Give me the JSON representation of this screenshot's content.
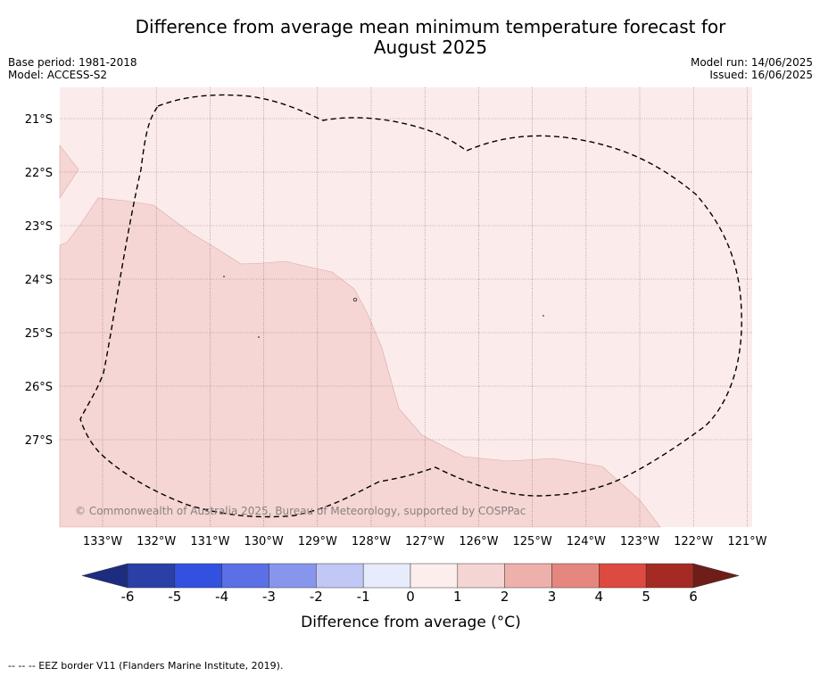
{
  "title": "Difference from average mean minimum temperature forecast for",
  "title_line2": "August 2025",
  "base_period": "Base period: 1981-2018",
  "model": "Model: ACCESS-S2",
  "model_run": "Model run: 14/06/2025",
  "issued": "Issued: 16/06/2025",
  "copyright": "© Commonwealth of Australia 2025, Bureau of Meteorology, supported by COSPPac",
  "lat_labels": [
    "21°S",
    "22°S",
    "23°S",
    "24°S",
    "25°S",
    "26°S",
    "27°S"
  ],
  "lon_labels": [
    "133°W",
    "132°W",
    "131°W",
    "130°W",
    "129°W",
    "128°W",
    "127°W",
    "126°W",
    "125°W",
    "124°W",
    "123°W",
    "122°W",
    "121°W"
  ],
  "colorbar": {
    "ticks": [
      "-6",
      "-5",
      "-4",
      "-3",
      "-2",
      "-1",
      "0",
      "1",
      "2",
      "3",
      "4",
      "5",
      "6"
    ],
    "colors": [
      "#2a3fa8",
      "#3251e0",
      "#5b6fe6",
      "#8796ec",
      "#c2c8f5",
      "#e8ebfb",
      "#fdeeee",
      "#f5d5d3",
      "#eeb0ab",
      "#e6877f",
      "#dc4a40",
      "#a52a24"
    ],
    "under_color": "#1c2d80",
    "over_color": "#6e1d18",
    "label": "Difference from average ($^\\circ$C)",
    "label_display": "Difference from average (°C)"
  },
  "legend_note": "--  --  -- EEZ border V11 (Flanders Marine Institute, 2019).",
  "map_colors": {
    "background_class": "#fbeceb",
    "warm_class": "#f5d6d4",
    "grid": "#7a6a6a",
    "eez_border": "#000000"
  }
}
